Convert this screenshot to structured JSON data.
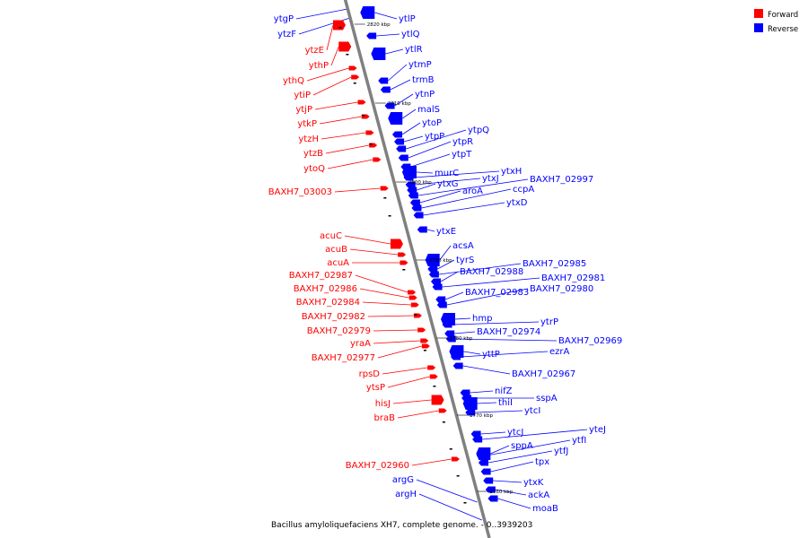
{
  "colors": {
    "forward": "#ff0000",
    "reverse": "#0000ff",
    "backbone": "#808080"
  },
  "legend": [
    {
      "label": "Forward",
      "color": "#ff0000"
    },
    {
      "label": "Reverse",
      "color": "#0000ff"
    }
  ],
  "caption": "Bacillus amyloliquefaciens XH7, complete genome. - 0..3939203",
  "ticks": [
    "2820 kbp",
    "2810 kbp",
    "2800 kbp",
    "2790 kbp",
    "2780 kbp",
    "2770 kbp",
    "2760 kbp"
  ],
  "forward_genes": [
    "ytzE",
    "ythP",
    "ythQ",
    "ytiP",
    "ytjP",
    "ytkP",
    "ytzH",
    "ytzB",
    "ytoQ",
    "BAXH7_03003",
    "acuC",
    "acuB",
    "acuA",
    "BAXH7_02987",
    "BAXH7_02986",
    "BAXH7_02984",
    "BAXH7_02982",
    "BAXH7_02979",
    "yraA",
    "BAXH7_02977",
    "rpsD",
    "ytsP",
    "hisJ",
    "braB",
    "BAXH7_02960"
  ],
  "reverse_genes_left": [
    "ytgP",
    "ytzF",
    "argG",
    "argH"
  ],
  "reverse_genes_right": [
    "ytlP",
    "ytlQ",
    "ytlR",
    "ytmP",
    "trmB",
    "ytnP",
    "malS",
    "ytoP",
    "ytpP",
    "ytpQ",
    "ytpR",
    "ytpT",
    "murC",
    "ytxH",
    "ytxJ",
    "ytxG",
    "BAXH7_02997",
    "aroA",
    "ccpA",
    "ytxD",
    "ytxE",
    "acsA",
    "tyrS",
    "BAXH7_02985",
    "BAXH7_02988",
    "BAXH7_02981",
    "BAXH7_02983",
    "BAXH7_02980",
    "hmp",
    "ytrP",
    "BAXH7_02974",
    "BAXH7_02969",
    "yttP",
    "ezrA",
    "BAXH7_02967",
    "nifZ",
    "sspA",
    "thiI",
    "ytcI",
    "ytcJ",
    "yteJ",
    "sppA",
    "ytfI",
    "ytfJ",
    "tpx",
    "ytxK",
    "ackA",
    "moaB"
  ]
}
